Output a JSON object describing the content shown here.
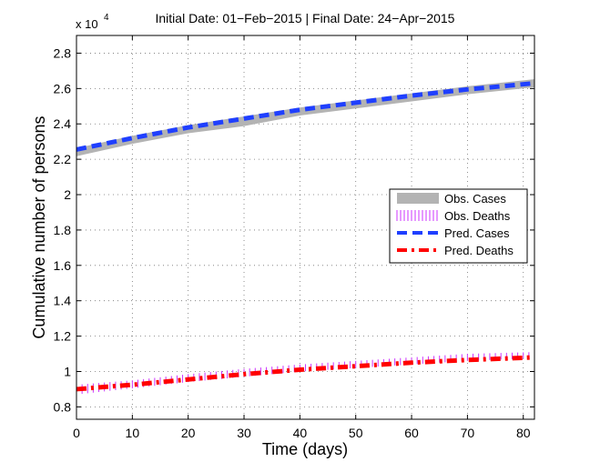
{
  "chart_data": {
    "type": "line",
    "title": "Initial Date: 01−Feb−2015 | Final Date: 24−Apr−2015",
    "xlabel": "Time (days)",
    "ylabel": "Cumulative number of persons",
    "y_exponent_label": "x 10",
    "y_exponent_power": "4",
    "xlim": [
      0,
      82
    ],
    "ylim": [
      0.73,
      2.9
    ],
    "x_ticks": [
      "0",
      "10",
      "20",
      "30",
      "40",
      "50",
      "60",
      "70",
      "80"
    ],
    "x_tick_values": [
      0,
      10,
      20,
      30,
      40,
      50,
      60,
      70,
      80
    ],
    "y_ticks": [
      "0.8",
      "1",
      "1.2",
      "1.4",
      "1.6",
      "1.8",
      "2",
      "2.2",
      "2.4",
      "2.6",
      "2.8"
    ],
    "y_tick_values": [
      0.8,
      1.0,
      1.2,
      1.4,
      1.6,
      1.8,
      2.0,
      2.2,
      2.4,
      2.6,
      2.8
    ],
    "grid": true,
    "legend_position": "right-center",
    "series": [
      {
        "name": "Obs. Cases",
        "style": "band",
        "color": "#b3b3b3",
        "x": [
          0,
          10,
          20,
          30,
          40,
          50,
          60,
          70,
          82
        ],
        "lower": [
          2.22,
          2.29,
          2.35,
          2.39,
          2.45,
          2.49,
          2.53,
          2.57,
          2.61
        ],
        "upper": [
          2.26,
          2.33,
          2.39,
          2.44,
          2.49,
          2.53,
          2.57,
          2.61,
          2.65
        ]
      },
      {
        "name": "Obs. Deaths",
        "style": "vertical-dash",
        "color": "#cc33ff",
        "x": [
          0,
          10,
          20,
          30,
          40,
          50,
          60,
          70,
          82
        ],
        "lower": [
          0.87,
          0.905,
          0.94,
          0.97,
          1.0,
          1.02,
          1.04,
          1.06,
          1.075
        ],
        "upper": [
          0.925,
          0.95,
          0.985,
          1.015,
          1.04,
          1.06,
          1.08,
          1.1,
          1.11
        ]
      },
      {
        "name": "Pred. Cases",
        "style": "dashed",
        "color": "#1f3fff",
        "x": [
          0,
          10,
          20,
          30,
          40,
          50,
          60,
          70,
          82
        ],
        "y": [
          2.255,
          2.32,
          2.38,
          2.43,
          2.48,
          2.52,
          2.56,
          2.595,
          2.63
        ]
      },
      {
        "name": "Pred. Deaths",
        "style": "dash-dot",
        "color": "#ff0000",
        "x": [
          0,
          10,
          20,
          30,
          40,
          50,
          60,
          70,
          82
        ],
        "y": [
          0.9,
          0.925,
          0.955,
          0.985,
          1.01,
          1.03,
          1.05,
          1.065,
          1.08
        ]
      }
    ]
  }
}
